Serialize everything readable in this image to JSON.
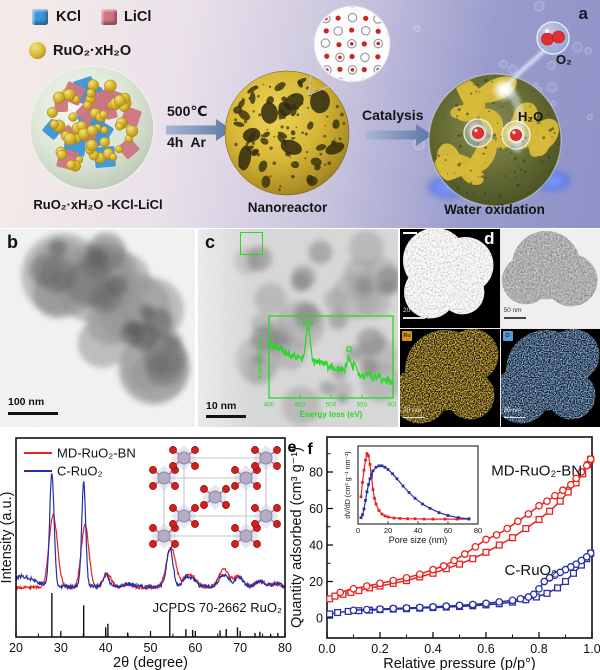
{
  "panel_a": {
    "letter": "a",
    "legend": {
      "kcl": "KCl",
      "licl": "LiCl",
      "ruo2": "RuO₂·xH₂O"
    },
    "precursor_label": "RuO₂·xH₂O -KCl-LiCl",
    "arrow1": {
      "top": "500℃",
      "bottom": "4h Ar"
    },
    "nanoreactor_label": "Nanoreactor",
    "arrow2": {
      "top": "Catalysis"
    },
    "water_label": "Water oxidation",
    "o2_label": "O₂",
    "h2o_label": "H₂O",
    "colors": {
      "kcl": "#3d95d8",
      "licl": "#cf7480",
      "ruo2": "#d4b62e",
      "arrow_from": "#a8b6d2",
      "arrow_to": "#5d76a6"
    }
  },
  "panel_b": {
    "letter": "b",
    "scale_bar": "100 nm"
  },
  "panel_c": {
    "letter": "c",
    "scale_bar": "10 nm",
    "eels": {
      "color": "#28d828",
      "xlabel": "Energy loss (eV)",
      "ylabel": "Intensity (a.u.)",
      "xticks": [
        400,
        450,
        500,
        550,
        600
      ],
      "peak_labels": [
        "Ru",
        "O"
      ],
      "baseline": {
        "start": 0.58,
        "decay": 150
      },
      "noise": 0.05,
      "peaks": [
        [
          463,
          0.4,
          3.2
        ],
        [
          485,
          0.05,
          6
        ],
        [
          505,
          0.04,
          5
        ],
        [
          528,
          0.17,
          3.0
        ],
        [
          537,
          0.1,
          3.5
        ],
        [
          560,
          0.05,
          4
        ],
        [
          575,
          0.03,
          4
        ]
      ]
    }
  },
  "panel_d": {
    "letter": "d",
    "tiles": [
      {
        "name": "haadf-image",
        "scale_bar": "20 nm"
      },
      {
        "name": "tem-image",
        "scale_bar": "50 nm"
      },
      {
        "name": "ru-eds-map",
        "scale_bar": "20 nm",
        "chip": "Ru",
        "color": "#d9920e"
      },
      {
        "name": "o-eds-map",
        "scale_bar": "20 nm",
        "chip": "O",
        "color": "#5b9bd5"
      }
    ]
  },
  "chart_data": [
    {
      "id": "xrd",
      "type": "line",
      "panel_letter": "e",
      "xlabel": "2θ (degree)",
      "ylabel": "Intensity (a.u.)",
      "xlim": [
        20,
        80
      ],
      "xticks": [
        20,
        30,
        40,
        50,
        60,
        70,
        80
      ],
      "legend": [
        {
          "label": "MD-RuO₂-BN",
          "color": "#e8231f"
        },
        {
          "label": "C-RuO₂",
          "color": "#2a2fa6"
        }
      ],
      "annotation": "JCPDS 70-2662 RuO₂",
      "series": [
        {
          "name": "MD-RuO₂-BN",
          "color": "#e8231f",
          "baseline": 0.04,
          "noise": 0.012,
          "peaks": [
            [
              28.3,
              0.64,
              0.95
            ],
            [
              35.4,
              0.56,
              0.85
            ],
            [
              40.4,
              0.12,
              0.9
            ],
            [
              44.9,
              0.03,
              1.0
            ],
            [
              54.6,
              0.36,
              1.05
            ],
            [
              58.1,
              0.09,
              0.9
            ],
            [
              59.7,
              0.07,
              0.9
            ],
            [
              65.8,
              0.07,
              1.0
            ],
            [
              66.8,
              0.11,
              1.1
            ],
            [
              69.7,
              0.1,
              1.0
            ],
            [
              74.2,
              0.05,
              1.2
            ],
            [
              78.0,
              0.03,
              1.2
            ]
          ]
        },
        {
          "name": "C-RuO₂",
          "color": "#2a2fa6",
          "baseline": 0.05,
          "noise": 0.018,
          "hump": [
            21.5,
            0.09,
            2.6
          ],
          "peaks": [
            [
              28.0,
              1.0,
              0.5
            ],
            [
              35.1,
              0.93,
              0.45
            ],
            [
              40.1,
              0.11,
              0.6
            ],
            [
              44.9,
              0.025,
              0.8
            ],
            [
              54.3,
              0.34,
              0.7
            ],
            [
              57.9,
              0.08,
              0.7
            ],
            [
              59.4,
              0.06,
              0.7
            ],
            [
              65.6,
              0.05,
              0.8
            ],
            [
              66.9,
              0.08,
              0.9
            ],
            [
              69.7,
              0.08,
              0.85
            ],
            [
              74.3,
              0.045,
              1.0
            ],
            [
              78.1,
              0.025,
              1.0
            ]
          ]
        }
      ],
      "reference": {
        "label": "JCPDS 70-2662 RuO₂",
        "sticks": [
          [
            28.0,
            1.0
          ],
          [
            35.1,
            0.72
          ],
          [
            40.0,
            0.22
          ],
          [
            40.5,
            0.3
          ],
          [
            44.9,
            0.1
          ],
          [
            54.3,
            0.58
          ],
          [
            57.9,
            0.18
          ],
          [
            59.4,
            0.16
          ],
          [
            65.5,
            0.15
          ],
          [
            66.9,
            0.18
          ],
          [
            69.4,
            0.22
          ],
          [
            73.3,
            0.09
          ],
          [
            74.4,
            0.12
          ],
          [
            76.8,
            0.07
          ],
          [
            78.4,
            0.09
          ]
        ]
      }
    },
    {
      "id": "isotherm",
      "type": "scatter-line",
      "panel_letter": "f",
      "xlabel": "Relative pressure (p/p°)",
      "ylabel": "Quantity adsorbed (cm³ g⁻¹)",
      "xlim": [
        0,
        1.0
      ],
      "ylim": [
        0,
        95
      ],
      "xticks": [
        "0.0",
        "0.2",
        "0.4",
        "0.6",
        "0.8",
        "1.0"
      ],
      "yticks": [
        0,
        20,
        40,
        60,
        80
      ],
      "labels": [
        {
          "text": "MD-RuO₂-BN",
          "x": 0.62,
          "y": 78
        },
        {
          "text": "C-RuO₂",
          "x": 0.67,
          "y": 23.5
        }
      ],
      "series": [
        {
          "name": "MD-RuO₂-BN adsorption",
          "color": "#e8231f",
          "marker": "square",
          "points": [
            [
              0.01,
              10.5
            ],
            [
              0.03,
              12
            ],
            [
              0.06,
              13
            ],
            [
              0.09,
              14
            ],
            [
              0.12,
              15
            ],
            [
              0.16,
              16.5
            ],
            [
              0.2,
              17.5
            ],
            [
              0.25,
              19
            ],
            [
              0.3,
              20.5
            ],
            [
              0.35,
              22.5
            ],
            [
              0.4,
              24.5
            ],
            [
              0.45,
              27
            ],
            [
              0.5,
              29.5
            ],
            [
              0.55,
              32.5
            ],
            [
              0.6,
              36
            ],
            [
              0.65,
              40
            ],
            [
              0.7,
              44
            ],
            [
              0.75,
              49
            ],
            [
              0.8,
              54
            ],
            [
              0.84,
              58.5
            ],
            [
              0.88,
              64
            ],
            [
              0.91,
              69
            ],
            [
              0.94,
              74
            ],
            [
              0.965,
              79
            ],
            [
              0.985,
              84
            ],
            [
              0.995,
              87
            ]
          ]
        },
        {
          "name": "MD-RuO₂-BN desorption",
          "color": "#e8231f",
          "marker": "circle",
          "points": [
            [
              0.995,
              87
            ],
            [
              0.98,
              83.5
            ],
            [
              0.96,
              80
            ],
            [
              0.94,
              76.5
            ],
            [
              0.92,
              73
            ],
            [
              0.89,
              70
            ],
            [
              0.86,
              67
            ],
            [
              0.83,
              64
            ],
            [
              0.8,
              61.5
            ],
            [
              0.76,
              57
            ],
            [
              0.72,
              53
            ],
            [
              0.68,
              49
            ],
            [
              0.64,
              45.5
            ],
            [
              0.6,
              43
            ],
            [
              0.56,
              39
            ],
            [
              0.52,
              35
            ],
            [
              0.48,
              31.5
            ],
            [
              0.44,
              28.5
            ],
            [
              0.4,
              26.5
            ],
            [
              0.35,
              24
            ],
            [
              0.3,
              22
            ],
            [
              0.25,
              20.5
            ],
            [
              0.2,
              19
            ],
            [
              0.15,
              17.5
            ],
            [
              0.1,
              16
            ],
            [
              0.05,
              14
            ]
          ]
        },
        {
          "name": "C-RuO₂ adsorption",
          "color": "#2a2fa6",
          "marker": "square",
          "points": [
            [
              0.01,
              2.2
            ],
            [
              0.04,
              3
            ],
            [
              0.08,
              3.6
            ],
            [
              0.12,
              4
            ],
            [
              0.16,
              4.3
            ],
            [
              0.2,
              4.6
            ],
            [
              0.25,
              4.9
            ],
            [
              0.3,
              5.1
            ],
            [
              0.35,
              5.4
            ],
            [
              0.4,
              5.7
            ],
            [
              0.45,
              6
            ],
            [
              0.5,
              6.3
            ],
            [
              0.55,
              6.7
            ],
            [
              0.6,
              7.2
            ],
            [
              0.65,
              7.8
            ],
            [
              0.7,
              8.7
            ],
            [
              0.75,
              10
            ],
            [
              0.79,
              11.5
            ],
            [
              0.83,
              13.5
            ],
            [
              0.87,
              16.5
            ],
            [
              0.9,
              20
            ],
            [
              0.93,
              24.5
            ],
            [
              0.96,
              29
            ],
            [
              0.98,
              32.5
            ],
            [
              0.995,
              35.5
            ]
          ]
        },
        {
          "name": "C-RuO₂ desorption",
          "color": "#2a2fa6",
          "marker": "circle",
          "points": [
            [
              0.995,
              35.5
            ],
            [
              0.98,
              33.5
            ],
            [
              0.96,
              31.5
            ],
            [
              0.94,
              29.5
            ],
            [
              0.92,
              28
            ],
            [
              0.9,
              26.5
            ],
            [
              0.88,
              25
            ],
            [
              0.86,
              23.5
            ],
            [
              0.84,
              22
            ],
            [
              0.82,
              20
            ],
            [
              0.8,
              16
            ],
            [
              0.78,
              13
            ],
            [
              0.76,
              11.5
            ],
            [
              0.73,
              10.5
            ],
            [
              0.7,
              9.7
            ],
            [
              0.65,
              8.8
            ],
            [
              0.6,
              8
            ],
            [
              0.55,
              7.4
            ],
            [
              0.5,
              6.9
            ],
            [
              0.45,
              6.5
            ],
            [
              0.4,
              6.1
            ],
            [
              0.35,
              5.8
            ],
            [
              0.3,
              5.5
            ],
            [
              0.25,
              5.2
            ],
            [
              0.2,
              4.9
            ],
            [
              0.15,
              4.6
            ],
            [
              0.1,
              4.2
            ]
          ]
        }
      ],
      "inset": {
        "xlabel": "Pore size (nm)",
        "ylabel": "dV/dD (cm³ g⁻¹ nm⁻¹)",
        "xticks": [
          0,
          20,
          40,
          60,
          80
        ],
        "xlim": [
          0,
          80
        ],
        "series": [
          {
            "name": "MD-RuO₂-BN",
            "color": "#e8231f",
            "points": [
              [
                2,
                0.35
              ],
              [
                3,
                0.55
              ],
              [
                4,
                0.72
              ],
              [
                5,
                0.86
              ],
              [
                6,
                0.95
              ],
              [
                7,
                0.92
              ],
              [
                8,
                0.8
              ],
              [
                9,
                0.62
              ],
              [
                10,
                0.45
              ],
              [
                11,
                0.33
              ],
              [
                12,
                0.25
              ],
              [
                14,
                0.16
              ],
              [
                16,
                0.11
              ],
              [
                18,
                0.085
              ],
              [
                20,
                0.07
              ],
              [
                24,
                0.055
              ],
              [
                28,
                0.05
              ],
              [
                33,
                0.045
              ],
              [
                38,
                0.045
              ],
              [
                44,
                0.04
              ],
              [
                50,
                0.04
              ],
              [
                58,
                0.04
              ],
              [
                66,
                0.04
              ],
              [
                74,
                0.04
              ]
            ]
          },
          {
            "name": "C-RuO₂",
            "color": "#2a2fa6",
            "points": [
              [
                2,
                0.06
              ],
              [
                3,
                0.1
              ],
              [
                4,
                0.18
              ],
              [
                5,
                0.3
              ],
              [
                6,
                0.42
              ],
              [
                7,
                0.52
              ],
              [
                8,
                0.6
              ],
              [
                9,
                0.66
              ],
              [
                10,
                0.71
              ],
              [
                12,
                0.76
              ],
              [
                14,
                0.78
              ],
              [
                16,
                0.78
              ],
              [
                18,
                0.76
              ],
              [
                20,
                0.73
              ],
              [
                23,
                0.67
              ],
              [
                26,
                0.6
              ],
              [
                30,
                0.5
              ],
              [
                34,
                0.41
              ],
              [
                38,
                0.33
              ],
              [
                43,
                0.25
              ],
              [
                48,
                0.19
              ],
              [
                54,
                0.13
              ],
              [
                60,
                0.09
              ],
              [
                67,
                0.06
              ],
              [
                74,
                0.045
              ]
            ]
          }
        ]
      }
    }
  ]
}
